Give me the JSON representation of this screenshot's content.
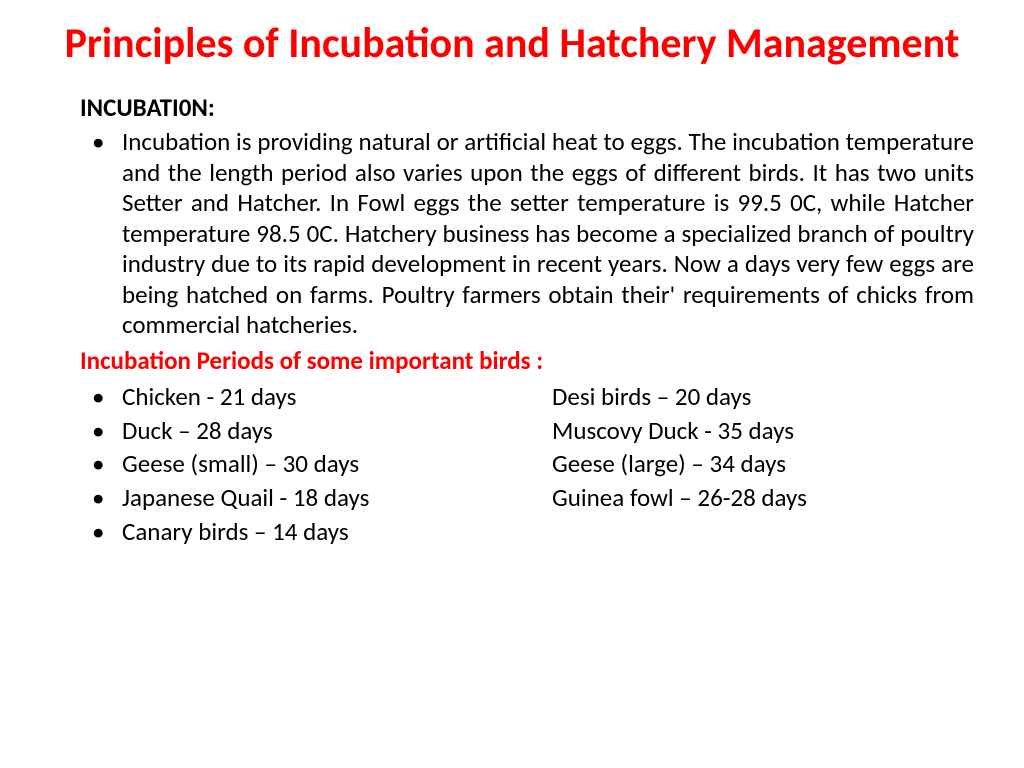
{
  "title": "Principles of Incubation and Hatchery Management",
  "section_heading": "INCUBATI0N:",
  "body": "Incubation is providing natural or artificial heat to eggs. The incubation temperature and the length period also varies upon the eggs of different birds. It has two units Setter and Hatcher. In Fowl eggs the setter temperature is 99.5 0C, while Hatcher temperature 98.5 0C. Hatchery business has become a specialized branch of poultry industry due to its rapid development in recent years. Now a days very few eggs are being hatched on farms. Poultry farmers obtain their' requirements of chicks from commercial hatcheries.",
  "sub_heading": "Incubation Periods of some important birds :",
  "periods": [
    {
      "left": "Chicken  -  21 days",
      "right": "Desi birds – 20 days"
    },
    {
      "left": "Duck – 28 days",
      "right": "Muscovy Duck  -  35 days"
    },
    {
      "left": "Geese (small) – 30 days",
      "right": "Geese (large) – 34 days"
    },
    {
      "left": "Japanese Quail  -  18 days",
      "right": "Guinea fowl – 26-28 days"
    },
    {
      "left": "Canary birds – 14 days",
      "right": ""
    }
  ],
  "colors": {
    "title": "#ff0000",
    "sub_heading": "#ff0000",
    "body_text": "#000000",
    "background": "#ffffff"
  },
  "typography": {
    "title_fontsize": 42,
    "body_fontsize": 25,
    "font_family": "Calibri"
  }
}
